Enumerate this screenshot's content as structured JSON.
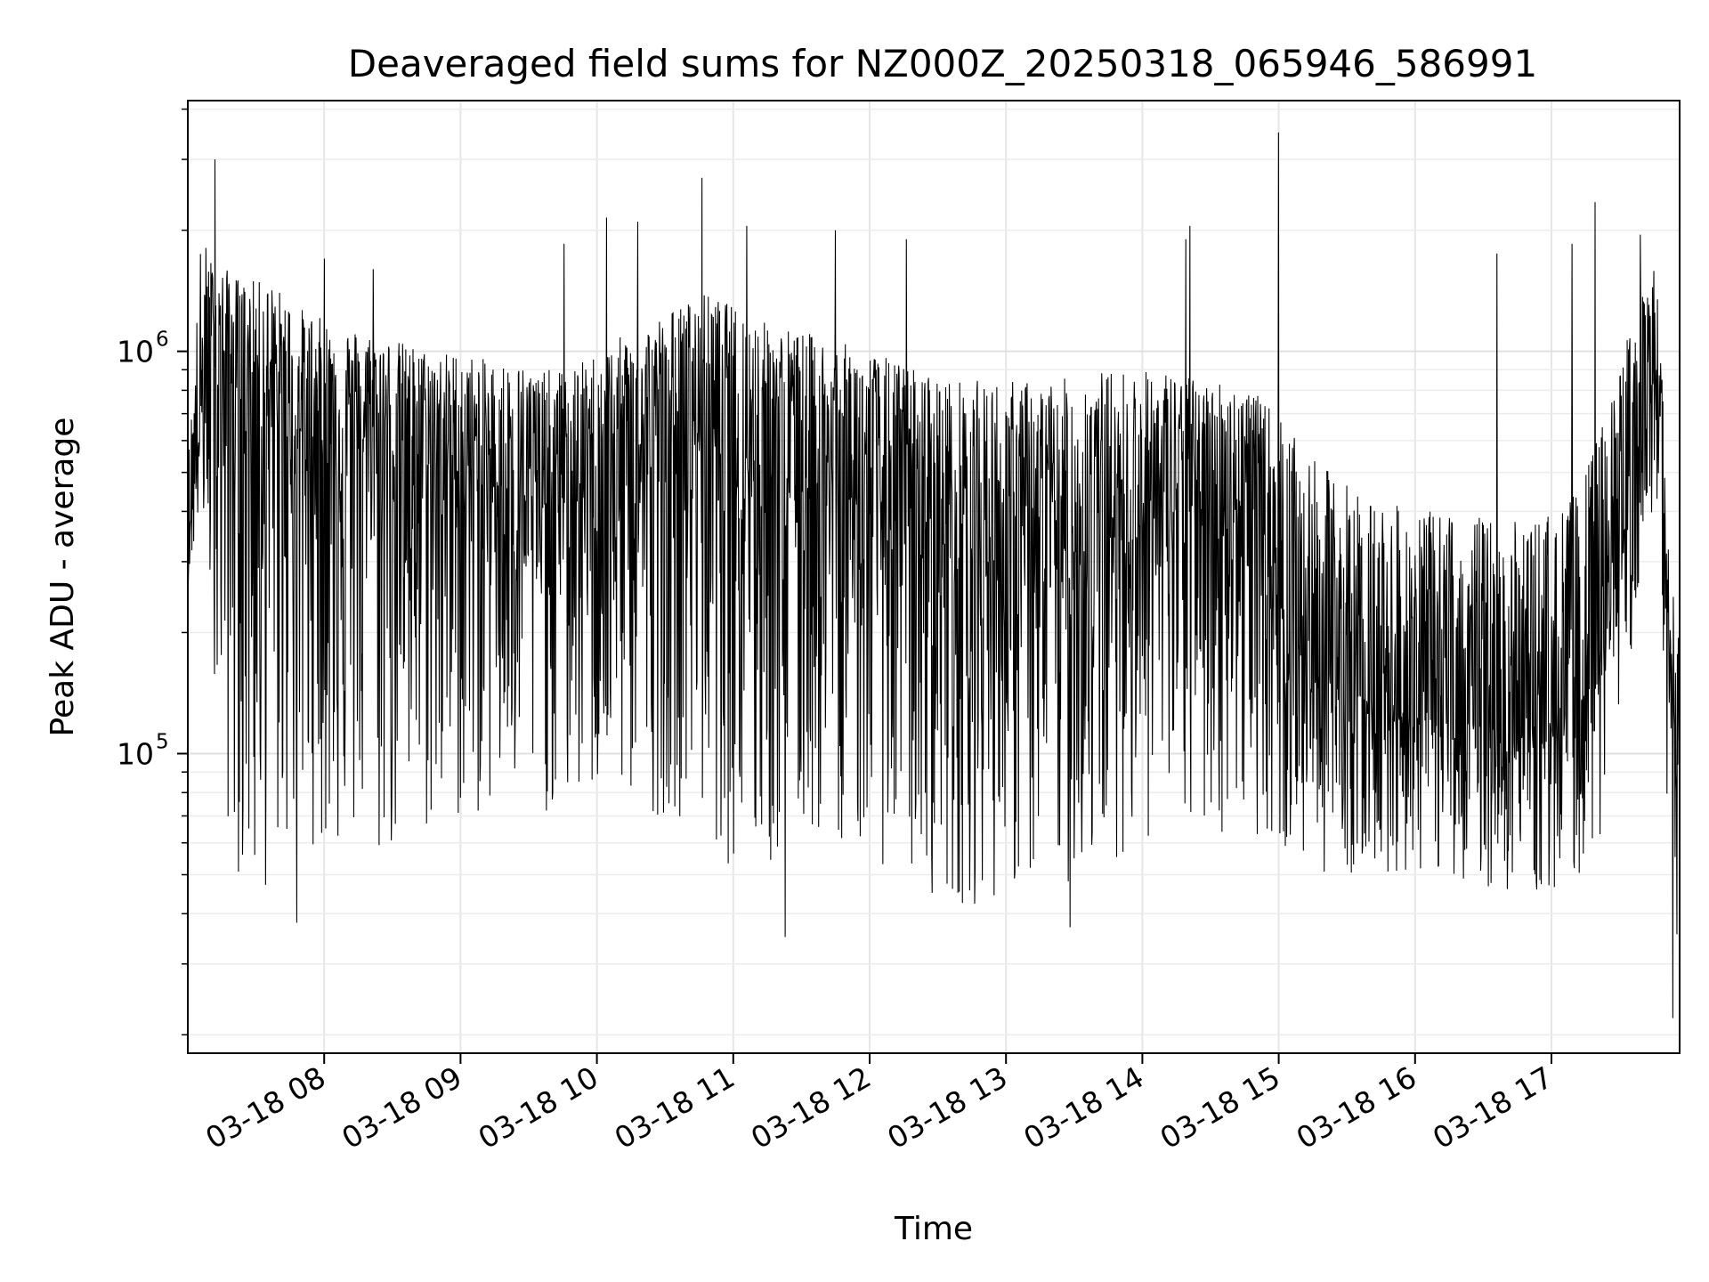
{
  "chart_data": {
    "type": "line",
    "title": "Deaveraged field sums for NZ000Z_20250318_065946_586991",
    "xlabel": "Time",
    "ylabel": "Peak ADU - average",
    "yscale": "log",
    "grid": true,
    "x_tick_values": [
      8,
      9,
      10,
      11,
      12,
      13,
      14,
      15,
      16,
      17
    ],
    "x_tick_labels": [
      "03-18 08",
      "03-18 09",
      "03-18 10",
      "03-18 11",
      "03-18 12",
      "03-18 13",
      "03-18 14",
      "03-18 15",
      "03-18 16",
      "03-18 17"
    ],
    "y_tick_values": [
      100000,
      1000000
    ],
    "y_tick_labels": [
      {
        "base": "10",
        "exp": "5"
      },
      {
        "base": "10",
        "exp": "6"
      }
    ],
    "xlim": [
      7.0,
      17.94
    ],
    "ylim": [
      18000,
      4200000
    ],
    "series": [
      {
        "line_color": "#000000",
        "x_hours": [
          7.0,
          7.1,
          7.2,
          7.3,
          7.4,
          7.5,
          7.6,
          7.7,
          7.8,
          7.9,
          8.0,
          8.2,
          8.4,
          8.6,
          8.8,
          9.0,
          9.2,
          9.4,
          9.6,
          9.8,
          10.0,
          10.2,
          10.4,
          10.6,
          10.8,
          11.0,
          11.2,
          11.4,
          11.6,
          11.8,
          12.0,
          12.2,
          12.4,
          12.6,
          12.8,
          13.0,
          13.2,
          13.4,
          13.6,
          13.8,
          14.0,
          14.2,
          14.4,
          14.6,
          14.8,
          15.0,
          15.2,
          15.4,
          15.6,
          15.8,
          16.0,
          16.2,
          16.4,
          16.6,
          16.8,
          17.0,
          17.2,
          17.4,
          17.5,
          17.6,
          17.7,
          17.75,
          17.8,
          17.85,
          17.9,
          17.94
        ],
        "median": [
          330000,
          700000,
          900000,
          850000,
          800000,
          750000,
          700000,
          680000,
          650000,
          620000,
          600000,
          620000,
          600000,
          560000,
          540000,
          500000,
          480000,
          450000,
          420000,
          420000,
          450000,
          480000,
          520000,
          600000,
          650000,
          620000,
          550000,
          500000,
          480000,
          450000,
          420000,
          380000,
          350000,
          330000,
          310000,
          300000,
          300000,
          310000,
          330000,
          350000,
          380000,
          400000,
          420000,
          420000,
          420000,
          250000,
          170000,
          150000,
          140000,
          130000,
          125000,
          120000,
          120000,
          115000,
          115000,
          120000,
          130000,
          200000,
          300000,
          500000,
          800000,
          900000,
          600000,
          150000,
          100000,
          80000
        ],
        "low": [
          260000,
          400000,
          150000,
          60000,
          45000,
          40000,
          45000,
          55000,
          60000,
          60000,
          55000,
          55000,
          50000,
          55000,
          60000,
          65000,
          70000,
          70000,
          70000,
          70000,
          75000,
          75000,
          70000,
          70000,
          65000,
          50000,
          45000,
          55000,
          60000,
          60000,
          55000,
          50000,
          45000,
          42000,
          42000,
          45000,
          45000,
          45000,
          50000,
          55000,
          60000,
          60000,
          60000,
          62000,
          65000,
          55000,
          52000,
          50000,
          50000,
          50000,
          50000,
          50000,
          48000,
          45000,
          45000,
          43000,
          50000,
          60000,
          140000,
          180000,
          300000,
          320000,
          280000,
          40000,
          30000,
          25000
        ],
        "high": [
          520000,
          2000000,
          1600000,
          1600000,
          1500000,
          1500000,
          1500000,
          1400000,
          1300000,
          1250000,
          1200000,
          1150000,
          1100000,
          1050000,
          1000000,
          1000000,
          950000,
          950000,
          900000,
          900000,
          1000000,
          1100000,
          1200000,
          1300000,
          1400000,
          1300000,
          1200000,
          1150000,
          1100000,
          1050000,
          1000000,
          950000,
          900000,
          850000,
          850000,
          850000,
          850000,
          850000,
          900000,
          900000,
          900000,
          900000,
          850000,
          850000,
          800000,
          700000,
          550000,
          500000,
          450000,
          420000,
          400000,
          400000,
          400000,
          380000,
          380000,
          400000,
          450000,
          700000,
          900000,
          1300000,
          1600000,
          1600000,
          1200000,
          350000,
          250000,
          180000
        ],
        "spikes": [
          {
            "x": 7.2,
            "y": 3000000
          },
          {
            "x": 8.0,
            "y": 1700000
          },
          {
            "x": 8.36,
            "y": 1600000
          },
          {
            "x": 9.76,
            "y": 1850000
          },
          {
            "x": 10.07,
            "y": 2150000
          },
          {
            "x": 10.3,
            "y": 2100000
          },
          {
            "x": 10.77,
            "y": 2700000
          },
          {
            "x": 11.1,
            "y": 2050000
          },
          {
            "x": 11.75,
            "y": 2000000
          },
          {
            "x": 12.27,
            "y": 1900000
          },
          {
            "x": 14.32,
            "y": 1900000
          },
          {
            "x": 14.35,
            "y": 2050000
          },
          {
            "x": 15.0,
            "y": 3500000
          },
          {
            "x": 16.6,
            "y": 1750000
          },
          {
            "x": 17.15,
            "y": 1850000
          },
          {
            "x": 17.32,
            "y": 2350000
          },
          {
            "x": 17.65,
            "y": 1950000
          },
          {
            "x": 11.38,
            "y": 35000
          },
          {
            "x": 13.47,
            "y": 37000
          },
          {
            "x": 7.8,
            "y": 38000
          },
          {
            "x": 17.89,
            "y": 22000
          }
        ]
      }
    ]
  }
}
